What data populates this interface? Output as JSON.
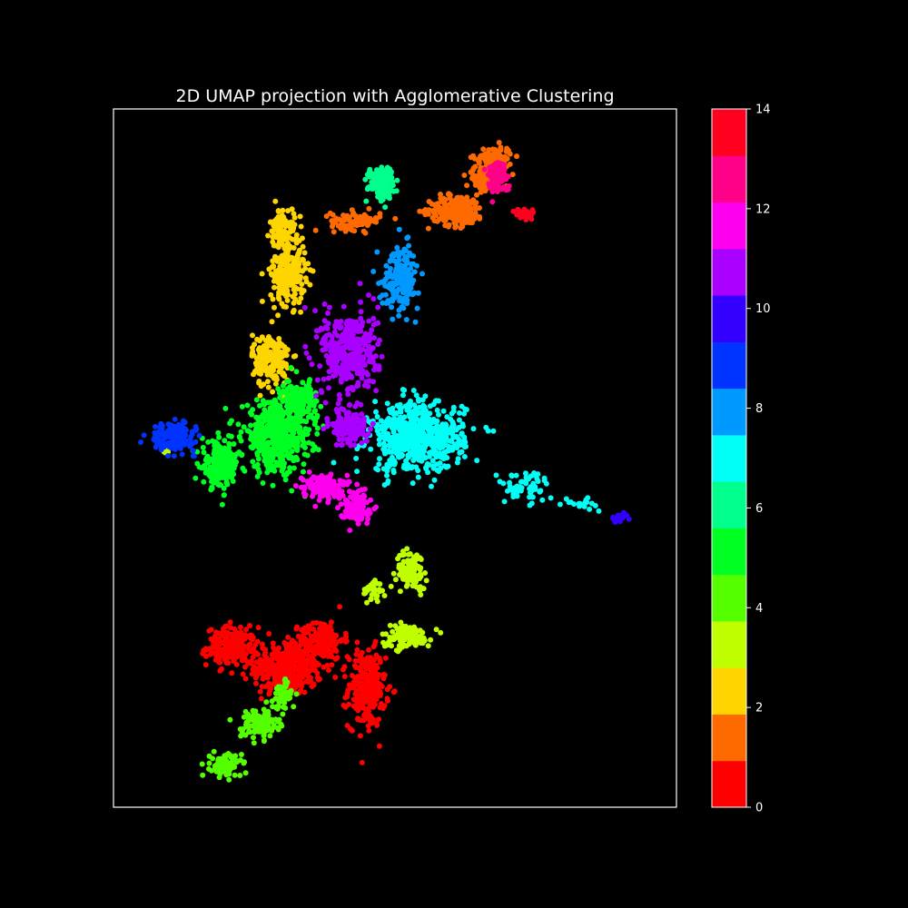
{
  "chart_data": {
    "type": "scatter",
    "title": "2D UMAP projection with Agglomerative Clustering",
    "xlabel": "",
    "ylabel": "",
    "xlim": [
      0,
      10
    ],
    "ylim": [
      0,
      10
    ],
    "grid": false,
    "legend": "none",
    "background": "#000000",
    "axis_color": "#ffffff",
    "colorbar": {
      "range": [
        0,
        14
      ],
      "ticks": [
        "0",
        "2",
        "4",
        "6",
        "8",
        "10",
        "12",
        "14"
      ],
      "tick_values": [
        0,
        2,
        4,
        6,
        8,
        10,
        12,
        14
      ],
      "colors": [
        "#ff0000",
        "#ff6a00",
        "#ffd500",
        "#bfff00",
        "#55ff00",
        "#00ff22",
        "#00ff8c",
        "#00fff6",
        "#0099ff",
        "#0033ff",
        "#3300ff",
        "#aa00ff",
        "#ff00ee",
        "#ff0088",
        "#ff001e"
      ]
    },
    "clusters": [
      {
        "label": 0,
        "color": "#ff0000",
        "center": [
          3.1,
          2.0
        ],
        "spread": [
          0.55,
          0.35
        ],
        "n": 380
      },
      {
        "label": 0,
        "color": "#ff0000",
        "center": [
          2.1,
          2.3
        ],
        "spread": [
          0.4,
          0.25
        ],
        "n": 200
      },
      {
        "label": 0,
        "color": "#ff0000",
        "center": [
          4.5,
          1.7
        ],
        "spread": [
          0.3,
          0.5
        ],
        "n": 260
      },
      {
        "label": 0,
        "color": "#ff0000",
        "center": [
          3.7,
          2.4
        ],
        "spread": [
          0.35,
          0.25
        ],
        "n": 160
      },
      {
        "label": 1,
        "color": "#ff6a00",
        "center": [
          6.1,
          8.55
        ],
        "spread": [
          0.45,
          0.2
        ],
        "n": 220
      },
      {
        "label": 1,
        "color": "#ff6a00",
        "center": [
          4.3,
          8.4
        ],
        "spread": [
          0.4,
          0.12
        ],
        "n": 90
      },
      {
        "label": 1,
        "color": "#ff6a00",
        "center": [
          6.6,
          9.0
        ],
        "spread": [
          0.3,
          0.15
        ],
        "n": 100
      },
      {
        "label": 1,
        "color": "#ff6a00",
        "center": [
          6.75,
          9.3
        ],
        "spread": [
          0.3,
          0.15
        ],
        "n": 90
      },
      {
        "label": 2,
        "color": "#ffd500",
        "center": [
          3.1,
          7.7
        ],
        "spread": [
          0.28,
          0.45
        ],
        "n": 240
      },
      {
        "label": 2,
        "color": "#ffd500",
        "center": [
          2.8,
          6.4
        ],
        "spread": [
          0.3,
          0.35
        ],
        "n": 180
      },
      {
        "label": 2,
        "color": "#ffd500",
        "center": [
          3.0,
          8.3
        ],
        "spread": [
          0.2,
          0.25
        ],
        "n": 80
      },
      {
        "label": 3,
        "color": "#bfff00",
        "center": [
          5.2,
          2.45
        ],
        "spread": [
          0.4,
          0.15
        ],
        "n": 130
      },
      {
        "label": 3,
        "color": "#bfff00",
        "center": [
          5.3,
          3.4
        ],
        "spread": [
          0.25,
          0.25
        ],
        "n": 90
      },
      {
        "label": 3,
        "color": "#bfff00",
        "center": [
          4.6,
          3.1
        ],
        "spread": [
          0.15,
          0.15
        ],
        "n": 40
      },
      {
        "label": 3,
        "color": "#bfff00",
        "center": [
          0.95,
          5.1
        ],
        "spread": [
          0.06,
          0.04
        ],
        "n": 8
      },
      {
        "label": 4,
        "color": "#55ff00",
        "center": [
          2.6,
          1.2
        ],
        "spread": [
          0.3,
          0.2
        ],
        "n": 120
      },
      {
        "label": 4,
        "color": "#55ff00",
        "center": [
          2.0,
          0.6
        ],
        "spread": [
          0.25,
          0.15
        ],
        "n": 90
      },
      {
        "label": 4,
        "color": "#55ff00",
        "center": [
          3.0,
          1.6
        ],
        "spread": [
          0.15,
          0.2
        ],
        "n": 60
      },
      {
        "label": 5,
        "color": "#00ff22",
        "center": [
          2.9,
          5.3
        ],
        "spread": [
          0.55,
          0.45
        ],
        "n": 480
      },
      {
        "label": 5,
        "color": "#00ff22",
        "center": [
          1.9,
          4.9
        ],
        "spread": [
          0.3,
          0.3
        ],
        "n": 200
      },
      {
        "label": 5,
        "color": "#00ff22",
        "center": [
          3.3,
          5.8
        ],
        "spread": [
          0.3,
          0.3
        ],
        "n": 160
      },
      {
        "label": 6,
        "color": "#00ff8c",
        "center": [
          4.75,
          8.95
        ],
        "spread": [
          0.2,
          0.2
        ],
        "n": 160
      },
      {
        "label": 7,
        "color": "#00fff6",
        "center": [
          5.4,
          5.3
        ],
        "spread": [
          0.75,
          0.45
        ],
        "n": 620
      },
      {
        "label": 7,
        "color": "#00fff6",
        "center": [
          7.3,
          4.6
        ],
        "spread": [
          0.45,
          0.2
        ],
        "n": 60
      },
      {
        "label": 7,
        "color": "#00fff6",
        "center": [
          8.3,
          4.35
        ],
        "spread": [
          0.25,
          0.08
        ],
        "n": 20
      },
      {
        "label": 8,
        "color": "#0099ff",
        "center": [
          5.1,
          7.6
        ],
        "spread": [
          0.3,
          0.4
        ],
        "n": 180
      },
      {
        "label": 9,
        "color": "#0033ff",
        "center": [
          1.05,
          5.3
        ],
        "spread": [
          0.35,
          0.18
        ],
        "n": 160
      },
      {
        "label": 10,
        "color": "#3300ff",
        "center": [
          9.0,
          4.15
        ],
        "spread": [
          0.15,
          0.06
        ],
        "n": 20
      },
      {
        "label": 11,
        "color": "#aa00ff",
        "center": [
          4.2,
          6.5
        ],
        "spread": [
          0.45,
          0.55
        ],
        "n": 380
      },
      {
        "label": 11,
        "color": "#aa00ff",
        "center": [
          4.2,
          5.45
        ],
        "spread": [
          0.3,
          0.25
        ],
        "n": 140
      },
      {
        "label": 12,
        "color": "#ff00ee",
        "center": [
          3.7,
          4.6
        ],
        "spread": [
          0.3,
          0.15
        ],
        "n": 130
      },
      {
        "label": 12,
        "color": "#ff00ee",
        "center": [
          4.3,
          4.3
        ],
        "spread": [
          0.25,
          0.2
        ],
        "n": 130
      },
      {
        "label": 13,
        "color": "#ff0088",
        "center": [
          6.8,
          9.05
        ],
        "spread": [
          0.18,
          0.22
        ],
        "n": 90
      },
      {
        "label": 14,
        "color": "#ff001e",
        "center": [
          7.3,
          8.5
        ],
        "spread": [
          0.15,
          0.08
        ],
        "n": 40
      }
    ]
  }
}
